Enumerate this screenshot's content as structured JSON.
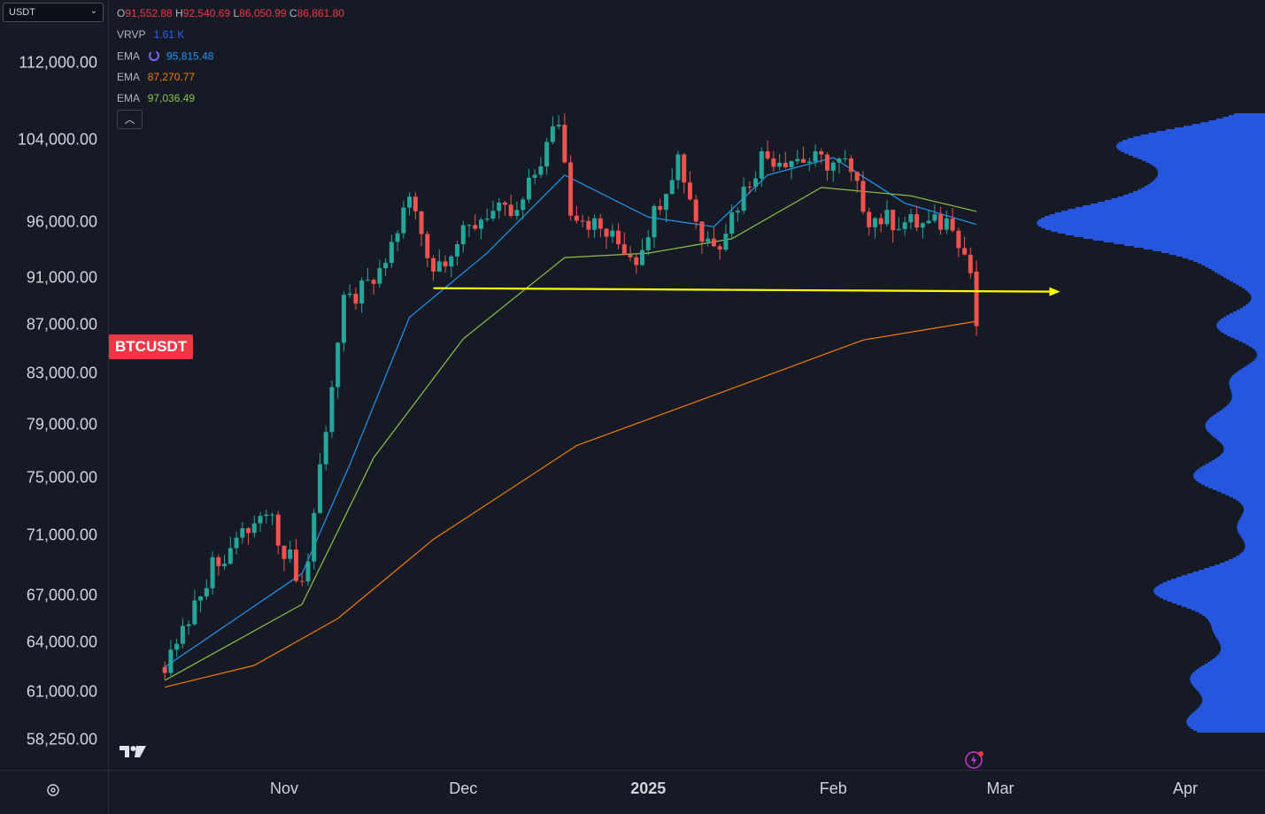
{
  "symbol_select": {
    "value": "USDT"
  },
  "ohlc": {
    "o_label": "O",
    "o": "91,552.88",
    "h_label": "H",
    "h": "92,540.69",
    "l_label": "L",
    "l": "86,050.99",
    "c_label": "C",
    "c": "86,861.80"
  },
  "indicators": [
    {
      "name": "VRVP",
      "value": "1.61 K",
      "color": "#2962ff"
    },
    {
      "name": "EMA",
      "value": "95,815.48",
      "color": "#2196f3",
      "icon": "loading-icon"
    },
    {
      "name": "EMA",
      "value": "87,270.77",
      "color": "#f57c00"
    },
    {
      "name": "EMA",
      "value": "97,036.49",
      "color": "#8bc34a"
    }
  ],
  "collapse_icon": "chevron-up-icon",
  "symbol_badge": "BTCUSDT",
  "colors": {
    "up": "#26a69a",
    "down": "#ef5350",
    "bg": "#161a25",
    "volume_profile": "#2962ff",
    "annotation": "#ffff00"
  },
  "y_axis": {
    "ticks": [
      "112,000.00",
      "104,000.00",
      "96,000.00",
      "91,000.00",
      "87,000.00",
      "83,000.00",
      "79,000.00",
      "75,000.00",
      "71,000.00",
      "67,000.00",
      "64,000.00",
      "61,000.00",
      "58,250.00"
    ]
  },
  "x_axis": {
    "ticks": [
      {
        "label": "Nov",
        "bold": false
      },
      {
        "label": "Dec",
        "bold": false
      },
      {
        "label": "2025",
        "bold": true
      },
      {
        "label": "Feb",
        "bold": false
      },
      {
        "label": "Mar",
        "bold": false
      },
      {
        "label": "Apr",
        "bold": false
      }
    ]
  },
  "chart_data": {
    "type": "candlestick",
    "symbol": "BTCUSDT",
    "interval": "1D",
    "y_scale": "log",
    "ylim": [
      56600,
      119000
    ],
    "grid": false,
    "x_ticks": [
      "Nov",
      "Dec",
      "2025",
      "Feb",
      "Mar",
      "Apr"
    ],
    "close_points": [
      {
        "date": "2024-10-12",
        "close": 62500
      },
      {
        "date": "2024-10-20",
        "close": 69000
      },
      {
        "date": "2024-10-29",
        "close": 72500
      },
      {
        "date": "2024-11-04",
        "close": 67800
      },
      {
        "date": "2024-11-05",
        "close": 69400
      },
      {
        "date": "2024-11-11",
        "close": 88600
      },
      {
        "date": "2024-11-17",
        "close": 91000
      },
      {
        "date": "2024-11-22",
        "close": 98300
      },
      {
        "date": "2024-11-26",
        "close": 91900
      },
      {
        "date": "2024-12-05",
        "close": 97000
      },
      {
        "date": "2024-12-10",
        "close": 96600
      },
      {
        "date": "2024-12-17",
        "close": 106000
      },
      {
        "date": "2024-12-19",
        "close": 97400
      },
      {
        "date": "2024-12-30",
        "close": 92800
      },
      {
        "date": "2025-01-06",
        "close": 102300
      },
      {
        "date": "2025-01-10",
        "close": 94500
      },
      {
        "date": "2025-01-13",
        "close": 94500
      },
      {
        "date": "2025-01-20",
        "close": 102300
      },
      {
        "date": "2025-01-26",
        "close": 102100
      },
      {
        "date": "2025-02-03",
        "close": 101500
      },
      {
        "date": "2025-02-07",
        "close": 96500
      },
      {
        "date": "2025-02-17",
        "close": 95700
      },
      {
        "date": "2025-02-21",
        "close": 96200
      },
      {
        "date": "2025-02-24",
        "close": 91500
      },
      {
        "date": "2025-02-25",
        "close": 86861.8
      }
    ],
    "last_candle": {
      "open": 91552.88,
      "high": 92540.69,
      "low": 86050.99,
      "close": 86861.8
    },
    "ema_series": [
      {
        "name": "EMA",
        "color": "#2196f3",
        "last": 95815.48,
        "points": [
          {
            "date": "2024-10-12",
            "value": 62500
          },
          {
            "date": "2024-11-04",
            "value": 68400
          },
          {
            "date": "2024-11-12",
            "value": 76000
          },
          {
            "date": "2024-11-22",
            "value": 87600
          },
          {
            "date": "2024-12-05",
            "value": 93200
          },
          {
            "date": "2024-12-18",
            "value": 100500
          },
          {
            "date": "2025-01-01",
            "value": 96500
          },
          {
            "date": "2025-01-12",
            "value": 95600
          },
          {
            "date": "2025-01-21",
            "value": 100500
          },
          {
            "date": "2025-02-01",
            "value": 102200
          },
          {
            "date": "2025-02-13",
            "value": 97800
          },
          {
            "date": "2025-02-25",
            "value": 95815.48
          }
        ]
      },
      {
        "name": "EMA",
        "color": "#8bc34a",
        "last": 97036.49,
        "points": [
          {
            "date": "2024-10-12",
            "value": 61700
          },
          {
            "date": "2024-11-04",
            "value": 66400
          },
          {
            "date": "2024-11-16",
            "value": 76500
          },
          {
            "date": "2024-12-01",
            "value": 85800
          },
          {
            "date": "2024-12-18",
            "value": 92800
          },
          {
            "date": "2025-01-01",
            "value": 93200
          },
          {
            "date": "2025-01-15",
            "value": 94500
          },
          {
            "date": "2025-01-30",
            "value": 99300
          },
          {
            "date": "2025-02-14",
            "value": 98500
          },
          {
            "date": "2025-02-25",
            "value": 97036.49
          }
        ]
      },
      {
        "name": "EMA",
        "color": "#f57c00",
        "last": 87270.77,
        "points": [
          {
            "date": "2024-10-12",
            "value": 61300
          },
          {
            "date": "2024-10-27",
            "value": 62600
          },
          {
            "date": "2024-11-10",
            "value": 65500
          },
          {
            "date": "2024-11-26",
            "value": 70700
          },
          {
            "date": "2024-12-20",
            "value": 77400
          },
          {
            "date": "2025-01-14",
            "value": 81600
          },
          {
            "date": "2025-02-06",
            "value": 85700
          },
          {
            "date": "2025-02-25",
            "value": 87270.77
          }
        ]
      }
    ],
    "annotations": [
      {
        "type": "horizontal_ray",
        "color": "#ffff00",
        "from": {
          "date": "2024-11-26",
          "price": 90100
        },
        "to": {
          "date": "2025-03-11",
          "price": 89800
        }
      }
    ],
    "volume_profile": {
      "name": "VRVP",
      "color": "#2962ff",
      "value": "1.61 K",
      "poc": 96500
    }
  }
}
